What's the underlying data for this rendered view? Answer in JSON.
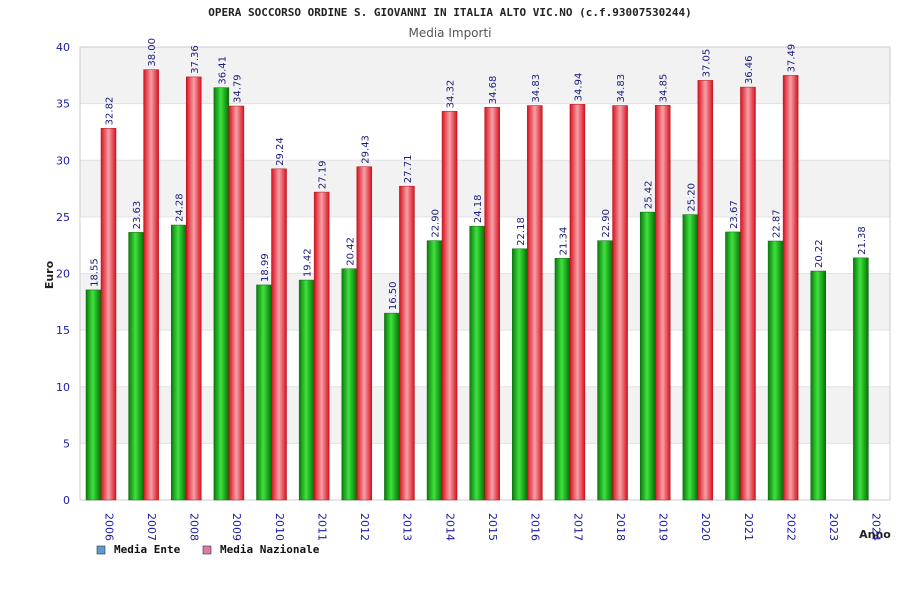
{
  "chart_data": {
    "type": "bar",
    "title": "OPERA SOCCORSO ORDINE S. GIOVANNI IN ITALIA ALTO VIC.NO (c.f.93007530244)",
    "subtitle": "Media Importi",
    "xlabel": "Anno",
    "ylabel": "Euro",
    "ylim": [
      0,
      40
    ],
    "yticks": [
      0,
      5,
      10,
      15,
      20,
      25,
      30,
      35,
      40
    ],
    "categories": [
      "2006",
      "2007",
      "2008",
      "2009",
      "2010",
      "2011",
      "2012",
      "2013",
      "2014",
      "2015",
      "2016",
      "2017",
      "2018",
      "2019",
      "2020",
      "2021",
      "2022",
      "2023",
      "2024"
    ],
    "series": [
      {
        "name": "Media Ente",
        "color": "#0a9a0a",
        "values": [
          18.55,
          23.63,
          24.28,
          36.41,
          18.99,
          19.42,
          20.42,
          16.5,
          22.9,
          24.18,
          22.18,
          21.34,
          22.9,
          25.42,
          25.2,
          23.67,
          22.87,
          20.22,
          21.38
        ],
        "labels": [
          "18.55",
          "23.63",
          "24.28",
          "36.41",
          "18.99",
          "19.42",
          "20.42",
          "16.50",
          "22.90",
          "24.18",
          "22.18",
          "21.34",
          "22.90",
          "25.42",
          "25.20",
          "23.67",
          "22.87",
          "20.22",
          "21.38"
        ]
      },
      {
        "name": "Media Nazionale",
        "color": "#e0202a",
        "values": [
          32.82,
          38.0,
          37.36,
          34.79,
          29.24,
          27.19,
          29.43,
          27.71,
          34.32,
          34.68,
          34.83,
          34.94,
          34.83,
          34.85,
          37.05,
          36.46,
          37.49,
          null,
          null
        ],
        "labels": [
          "32.82",
          "38.00",
          "37.36",
          "34.79",
          "29.24",
          "27.19",
          "29.43",
          "27.71",
          "34.32",
          "34.68",
          "34.83",
          "34.94",
          "34.83",
          "34.85",
          "37.05",
          "36.46",
          "37.49",
          "",
          ""
        ]
      }
    ],
    "legend": [
      {
        "name": "Media Ente",
        "color": "#5b9bd5"
      },
      {
        "name": "Media Nazionale",
        "color": "#e07aa8"
      }
    ],
    "legend_position": "bottom-left",
    "grid": true
  }
}
